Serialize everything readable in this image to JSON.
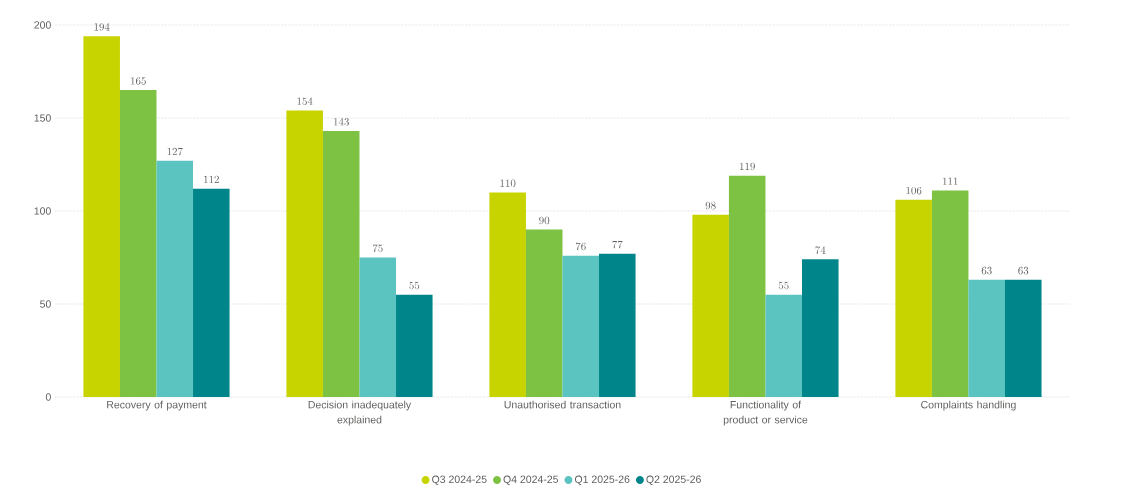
{
  "chart_data": {
    "type": "bar",
    "categories": [
      "Recovery of payment",
      "Decision inadequately explained",
      "Unauthorised transaction",
      "Functionality of product or service",
      "Complaints handling"
    ],
    "series": [
      {
        "name": "Q3 2024-25",
        "color": "#c8d400",
        "values": [
          194,
          154,
          110,
          98,
          106
        ]
      },
      {
        "name": "Q4 2024-25",
        "color": "#7dc242",
        "values": [
          165,
          143,
          90,
          119,
          111
        ]
      },
      {
        "name": "Q1 2025-26",
        "color": "#5bc4c1",
        "values": [
          127,
          75,
          76,
          55,
          63
        ]
      },
      {
        "name": "Q2 2025-26",
        "color": "#00868a",
        "values": [
          112,
          55,
          77,
          74,
          63
        ]
      }
    ],
    "ylim": [
      0,
      200
    ],
    "yticks": [
      0,
      50,
      100,
      150,
      200
    ],
    "grid": "y",
    "legend": "bottom",
    "data_labels": true
  }
}
